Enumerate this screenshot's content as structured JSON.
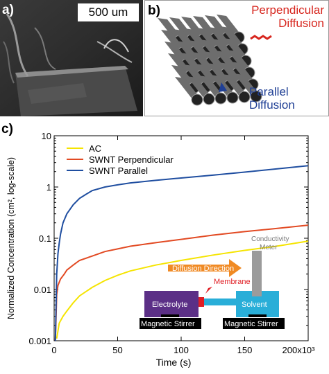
{
  "panel_a": {
    "label": "a)",
    "scale_bar_text": "500 um"
  },
  "panel_b": {
    "label": "b)",
    "perpendicular_text": [
      "Perpendicular",
      "Diffusion"
    ],
    "parallel_text": [
      "Parallel",
      "Diffusion"
    ],
    "perpendicular_arrow_color": "#d7261e",
    "parallel_arrow_color": "#1f3f95"
  },
  "panel_c": {
    "label": "c)"
  },
  "chart_data": {
    "type": "line",
    "xlabel": "Time (s)",
    "ylabel": "Normalized Concentration (cm², log-scale)",
    "x_tick_labels": [
      "0",
      "50",
      "100",
      "150",
      "200x10³"
    ],
    "x_ticks": [
      0,
      50,
      100,
      150,
      200
    ],
    "y_tick_labels": [
      "0.001",
      "0.01",
      "0.1",
      "1",
      "10"
    ],
    "y_ticks": [
      0.001,
      0.01,
      0.1,
      1,
      10
    ],
    "xlim": [
      0,
      200
    ],
    "ylim": [
      0.001,
      10
    ],
    "y_scale": "log",
    "legend_position": "top-left",
    "series": [
      {
        "name": "AC",
        "color": "#f5e400",
        "x": [
          2,
          4,
          7,
          10,
          15,
          20,
          30,
          40,
          50,
          60,
          80,
          100,
          125,
          150,
          175,
          200
        ],
        "y": [
          0.0011,
          0.0022,
          0.003,
          0.0038,
          0.0055,
          0.0075,
          0.011,
          0.015,
          0.019,
          0.023,
          0.03,
          0.037,
          0.047,
          0.058,
          0.07,
          0.088
        ]
      },
      {
        "name": "SWNT Perpendicular",
        "color": "#e24a23",
        "x": [
          1,
          2,
          3,
          5,
          8,
          10,
          15,
          20,
          30,
          40,
          50,
          60,
          80,
          100,
          125,
          150,
          175,
          200
        ],
        "y": [
          0.001,
          0.008,
          0.012,
          0.016,
          0.02,
          0.024,
          0.03,
          0.037,
          0.045,
          0.055,
          0.062,
          0.07,
          0.082,
          0.095,
          0.115,
          0.135,
          0.155,
          0.18
        ]
      },
      {
        "name": "SWNT Parallel",
        "color": "#1f4ea0",
        "x": [
          1,
          2,
          3,
          4,
          5,
          7,
          10,
          15,
          20,
          25,
          30,
          40,
          50,
          60,
          80,
          100,
          125,
          150,
          175,
          200
        ],
        "y": [
          0.001,
          0.02,
          0.05,
          0.08,
          0.12,
          0.2,
          0.3,
          0.45,
          0.6,
          0.72,
          0.85,
          1.0,
          1.1,
          1.2,
          1.35,
          1.5,
          1.7,
          1.95,
          2.25,
          2.6
        ]
      }
    ],
    "inset": {
      "diffusion_direction": "Diffusion Direction",
      "membrane": "Membrane",
      "electrolyte": "Electrolyte",
      "solvent": "Solvent",
      "conductivity_meter": [
        "Conductivity",
        "Meter"
      ],
      "stirrer_left": "Magnetic Stirrer",
      "stirrer_right": "Magnetic Stirrer",
      "colors": {
        "electrolyte": "#5b2f86",
        "solvent": "#29aed8",
        "membrane": "#e01e24",
        "arrow": "#f08a24",
        "meter": "#9b9b9b"
      }
    }
  }
}
